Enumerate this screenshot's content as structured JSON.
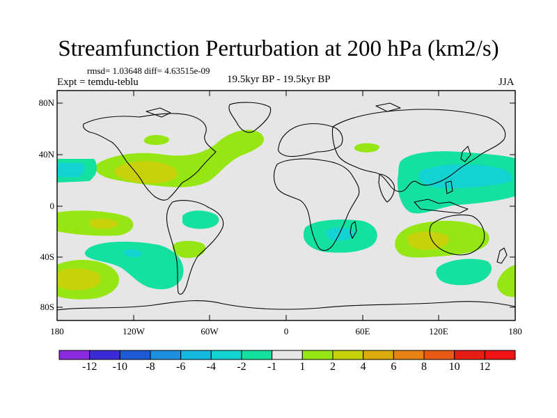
{
  "title": "Streamfunction Perturbation at 200 hPa (km2/s)",
  "stats_text": "rmsd= 1.03648 diff= 4.63515e-09",
  "expt_text": "Expt = temdu-teblu",
  "period_text": "19.5kyr BP - 19.5kyr BP",
  "season_text": "JJA",
  "y_axis_labels": [
    "80N",
    "40N",
    "0",
    "40S",
    "80S"
  ],
  "x_axis_labels": [
    "180",
    "120W",
    "60W",
    "0",
    "60E",
    "120E",
    "180"
  ],
  "colorbar": {
    "labels": [
      "-12",
      "-10",
      "-8",
      "-6",
      "-4",
      "-2",
      "-1",
      "1",
      "2",
      "4",
      "6",
      "8",
      "10",
      "12"
    ],
    "colors": [
      "#8a2be2",
      "#3a2bd8",
      "#1e5ad8",
      "#1e90e0",
      "#14b9e0",
      "#14d2d2",
      "#14e0a0",
      "#e6e6e6",
      "#96e614",
      "#c8d20a",
      "#dcaa0a",
      "#e68214",
      "#e65a14",
      "#e61e14",
      "#f01414"
    ]
  },
  "map": {
    "background_color": "#e6e6e6",
    "regions": [
      {
        "name": "north-atlantic-wave",
        "level": "1"
      },
      {
        "name": "central-north-america-positive",
        "level": "2"
      },
      {
        "name": "north-pacific-negative",
        "level": "-1"
      },
      {
        "name": "west-asia-pacific-negative",
        "level": "-1"
      },
      {
        "name": "south-pacific-positive",
        "level": "2"
      },
      {
        "name": "south-africa-negative",
        "level": "-1"
      },
      {
        "name": "australia-positive",
        "level": "2"
      }
    ]
  }
}
